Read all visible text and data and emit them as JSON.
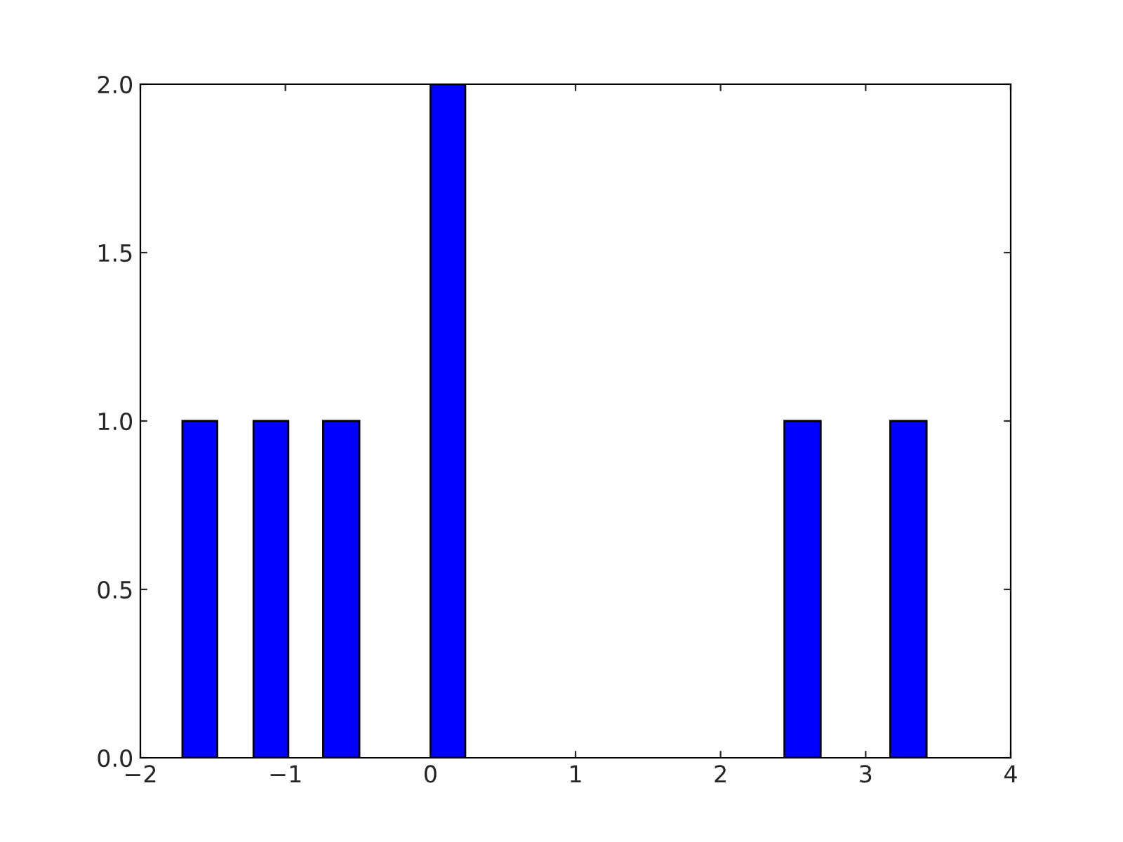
{
  "chart_data": {
    "type": "histogram",
    "bins": [
      -1.71,
      -1.47,
      -1.22,
      -0.98,
      -0.74,
      -0.49,
      0.0,
      0.24,
      2.44,
      2.69,
      3.17,
      3.42
    ],
    "values": [
      1,
      0,
      1,
      0,
      1,
      0,
      2,
      0,
      1,
      0,
      1
    ],
    "color": "#0000ff",
    "xlim": [
      -2,
      4
    ],
    "xticks": [
      -2,
      -1,
      0,
      1,
      2,
      3,
      4
    ],
    "ylim": [
      0,
      2
    ],
    "yticks": [
      {
        "value": 0,
        "label": "0.0"
      },
      {
        "value": 0.5,
        "label": "0.5"
      },
      {
        "value": 1,
        "label": "1.0"
      },
      {
        "value": 1.5,
        "label": "1.5"
      },
      {
        "value": 2,
        "label": "2.0"
      }
    ],
    "grid": false,
    "legend": false
  }
}
